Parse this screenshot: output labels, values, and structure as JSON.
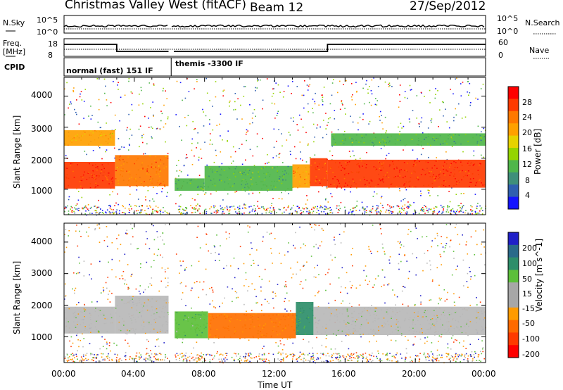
{
  "header": {
    "radar": "Christmas Valley West (fitACF)",
    "beam": "Beam 12",
    "date": "27/Sep/2012"
  },
  "strip_labels": {
    "nsky": "N.Sky",
    "nsky_tick_top": "10^5",
    "nsky_tick_bot": "10^0",
    "freq": "Freq.",
    "freq_unit": "[MHz]",
    "freq_tick_top": "18",
    "freq_tick_bot": "8",
    "cpid": "CPID",
    "nsearch": "N.Search",
    "nsearch_tick_top": "10^5",
    "nsearch_tick_bot": "10^0",
    "nave": "Nave",
    "nave_tick_top": "60",
    "nave_tick_bot": "0",
    "cpid_mode_1": "normal (fast) 151 IF",
    "cpid_mode_2": "themis -3300 IF"
  },
  "axes": {
    "ylabel": "Slant Range [km]",
    "xlabel": "Time UT",
    "yticks": [
      "4000",
      "3000",
      "2000",
      "1000"
    ],
    "xticks": [
      "00:00",
      "04:00",
      "08:00",
      "12:00",
      "16:00",
      "20:00",
      "00:00"
    ]
  },
  "colorbars": {
    "power": {
      "label": "Power [dB]",
      "ticks": [
        "28",
        "24",
        "20",
        "16",
        "12",
        "8",
        "4"
      ],
      "colors": [
        "#ff0000",
        "#ff3a00",
        "#ff7800",
        "#ffa000",
        "#e6d200",
        "#94d400",
        "#4fb64a",
        "#3f8f7a",
        "#2f5fb0",
        "#1414ff"
      ]
    },
    "velocity": {
      "label": "Velocity [m s^-1]",
      "ticks": [
        "200",
        "100",
        "50",
        "15",
        "-15",
        "-50",
        "-100",
        "-200"
      ],
      "colors": [
        "#2020c8",
        "#2a6a8a",
        "#2e8e6a",
        "#5cbf3a",
        "#a7a7a7",
        "#a7a7a7",
        "#ff9a00",
        "#ff6a00",
        "#ff3a00",
        "#ff0000"
      ]
    }
  },
  "chart_data": [
    {
      "type": "heatmap",
      "title": "Power [dB]",
      "xlabel": "Time UT",
      "ylabel": "Slant Range [km]",
      "xlim": [
        "00:00",
        "24:00"
      ],
      "ylim": [
        180,
        4600
      ],
      "segments": [
        {
          "t0": 0.0,
          "t1": 2.9,
          "r_lo": 1020,
          "r_hi": 1880,
          "value": 28
        },
        {
          "t0": 2.9,
          "t1": 6.0,
          "r_lo": 1100,
          "r_hi": 2100,
          "value": 24
        },
        {
          "t0": 6.3,
          "t1": 8.0,
          "r_lo": 950,
          "r_hi": 1350,
          "value": 12
        },
        {
          "t0": 8.0,
          "t1": 13.0,
          "r_lo": 950,
          "r_hi": 1750,
          "value": 12
        },
        {
          "t0": 13.0,
          "t1": 14.0,
          "r_lo": 1050,
          "r_hi": 1800,
          "value": 22
        },
        {
          "t0": 14.0,
          "t1": 15.0,
          "r_lo": 1100,
          "r_hi": 2000,
          "value": 26
        },
        {
          "t0": 15.0,
          "t1": 24.0,
          "r_lo": 1050,
          "r_hi": 1950,
          "value": 28
        },
        {
          "t0": 0.0,
          "t1": 2.9,
          "r_lo": 2400,
          "r_hi": 2900,
          "value": 20
        },
        {
          "t0": 15.2,
          "t1": 24.0,
          "r_lo": 2400,
          "r_hi": 2800,
          "value": 12
        }
      ]
    },
    {
      "type": "heatmap",
      "title": "Velocity [m s^-1]",
      "xlabel": "Time UT",
      "ylabel": "Slant Range [km]",
      "xlim": [
        "00:00",
        "24:00"
      ],
      "ylim": [
        180,
        4600
      ],
      "segments": [
        {
          "t0": 0.0,
          "t1": 2.9,
          "r_lo": 1100,
          "r_hi": 1950,
          "value": 0
        },
        {
          "t0": 2.9,
          "t1": 6.0,
          "r_lo": 1100,
          "r_hi": 2300,
          "value": 0
        },
        {
          "t0": 6.3,
          "t1": 8.2,
          "r_lo": 950,
          "r_hi": 1800,
          "value": 30
        },
        {
          "t0": 8.2,
          "t1": 13.2,
          "r_lo": 950,
          "r_hi": 1750,
          "value": -50
        },
        {
          "t0": 13.2,
          "t1": 14.2,
          "r_lo": 1050,
          "r_hi": 2100,
          "value": 40
        },
        {
          "t0": 14.2,
          "t1": 24.0,
          "r_lo": 1050,
          "r_hi": 1950,
          "value": 0
        }
      ]
    }
  ]
}
